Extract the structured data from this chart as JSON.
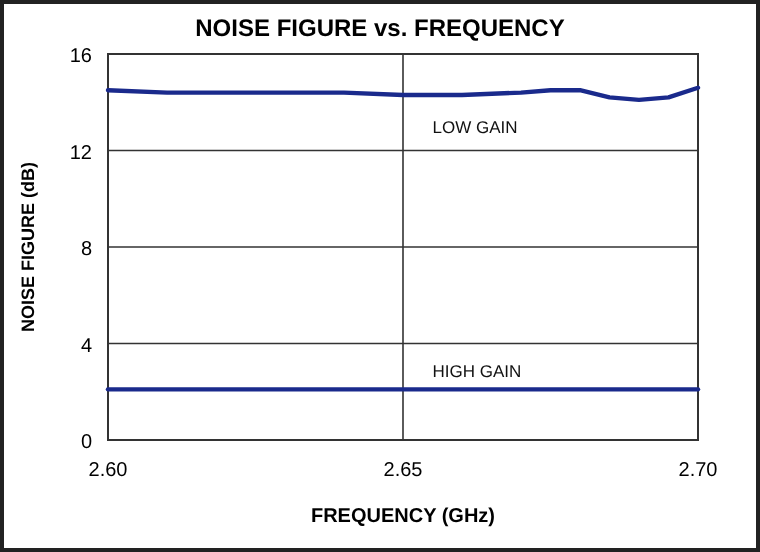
{
  "chart_data": {
    "type": "line",
    "title": "NOISE FIGURE vs. FREQUENCY",
    "xlabel": "FREQUENCY (GHz)",
    "ylabel": "NOISE FIGURE (dB)",
    "xlim": [
      2.6,
      2.7
    ],
    "xticks": [
      {
        "value": 2.6,
        "label": "2.60"
      },
      2.65,
      {
        "value": 2.7,
        "label": "2.70"
      }
    ],
    "ylim": [
      0,
      16
    ],
    "yticks": [
      0,
      4,
      8,
      12,
      16
    ],
    "grid": true,
    "marker": "none",
    "line_style": "solid",
    "series": [
      {
        "name": "LOW GAIN",
        "color": "#1a2a8c",
        "x": [
          2.6,
          2.61,
          2.62,
          2.63,
          2.64,
          2.65,
          2.66,
          2.67,
          2.675,
          2.68,
          2.685,
          2.69,
          2.695,
          2.7
        ],
        "values": [
          14.5,
          14.4,
          14.4,
          14.4,
          14.4,
          14.3,
          14.3,
          14.4,
          14.5,
          14.5,
          14.2,
          14.1,
          14.2,
          14.6
        ]
      },
      {
        "name": "HIGH GAIN",
        "color": "#1a2a8c",
        "x": [
          2.6,
          2.65,
          2.7
        ],
        "values": [
          2.1,
          2.1,
          2.1
        ]
      }
    ]
  }
}
